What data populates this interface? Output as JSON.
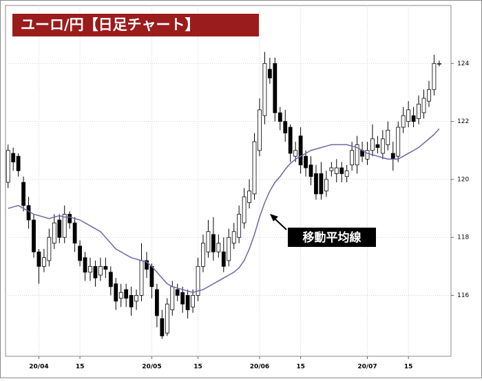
{
  "chart_data": {
    "type": "candlestick",
    "title": "ユーロ/円【日足チャート】",
    "annotation": "移動平均線",
    "xlim": [
      -0.5,
      86.3
    ],
    "xticks": [
      {
        "value": 6,
        "label": "20/04"
      },
      {
        "value": 14,
        "label": "15"
      },
      {
        "value": 28,
        "label": "20/05"
      },
      {
        "value": 37,
        "label": "15"
      },
      {
        "value": 49,
        "label": "20/06"
      },
      {
        "value": 57,
        "label": "15"
      },
      {
        "value": 70,
        "label": "20/07"
      },
      {
        "value": 78,
        "label": "15"
      }
    ],
    "ylim": [
      113.9,
      126
    ],
    "yticks": [
      116,
      118,
      120,
      122,
      124
    ],
    "grid": true,
    "up_color": "#ffffff",
    "down_color": "#000000",
    "open": [
      119.9,
      120.9,
      120.8,
      119.9,
      119.1,
      118.6,
      117.5,
      117.0,
      117.2,
      117.8,
      118.6,
      118.0,
      118.8,
      118.5,
      117.7,
      117.3,
      116.8,
      117.0,
      116.7,
      117.0,
      116.8,
      116.4,
      115.9,
      116.2,
      116.0,
      115.8,
      116.0,
      117.2,
      117.0,
      116.2,
      115.2,
      114.7,
      115.5,
      116.2,
      116.1,
      116.0,
      115.6,
      116.0,
      117.0,
      117.5,
      118.1,
      117.5,
      117.5,
      117.2,
      117.8,
      118.0,
      118.5,
      119.2,
      119.5,
      121.0,
      122.2,
      123.8,
      124.0,
      122.3,
      122.0,
      121.8,
      120.8,
      121.5,
      120.8,
      120.5,
      120.2,
      120.2,
      119.6,
      120.3,
      120.2,
      120.4,
      120.1,
      120.5,
      120.5,
      121.0,
      120.7,
      121.0,
      121.2,
      120.9,
      121.2,
      120.9,
      120.8,
      121.8,
      122.0,
      122.2,
      122.1,
      122.3,
      122.7,
      123.1,
      124.0
    ],
    "high": [
      121.2,
      121.1,
      120.9,
      120.1,
      119.4,
      118.8,
      117.6,
      117.6,
      118.3,
      118.8,
      118.8,
      119.1,
      118.9,
      118.7,
      117.9,
      117.5,
      117.3,
      117.2,
      117.3,
      117.3,
      117.0,
      116.6,
      116.4,
      116.4,
      116.3,
      116.2,
      117.8,
      117.5,
      117.1,
      116.4,
      115.5,
      115.9,
      116.5,
      116.4,
      116.3,
      116.2,
      116.2,
      117.3,
      118.1,
      118.6,
      118.7,
      118.1,
      118.0,
      118.3,
      118.5,
      119.1,
      119.7,
      120.0,
      121.6,
      122.8,
      124.4,
      124.2,
      124.2,
      122.5,
      122.4,
      121.9,
      121.3,
      121.8,
      121.0,
      120.8,
      120.5,
      120.6,
      120.3,
      120.6,
      120.7,
      120.6,
      120.5,
      121.3,
      121.5,
      121.3,
      121.3,
      121.9,
      121.5,
      121.7,
      122.0,
      121.3,
      122.0,
      122.5,
      122.7,
      122.5,
      122.9,
      123.1,
      123.4,
      124.3,
      124.1
    ],
    "low": [
      119.7,
      120.3,
      120.1,
      118.9,
      118.3,
      117.3,
      116.4,
      116.8,
      117.0,
      117.6,
      117.8,
      117.8,
      118.3,
      117.5,
      117.0,
      116.5,
      116.5,
      116.3,
      116.5,
      116.6,
      116.0,
      115.5,
      115.6,
      115.6,
      115.3,
      115.5,
      115.8,
      116.6,
      115.9,
      114.9,
      114.5,
      114.6,
      115.3,
      115.8,
      115.4,
      115.2,
      115.4,
      115.8,
      116.8,
      117.3,
      117.2,
      117.3,
      116.8,
      117.0,
      117.6,
      117.8,
      118.3,
      119.0,
      119.3,
      120.8,
      121.9,
      123.3,
      122.0,
      121.7,
      121.3,
      120.6,
      120.6,
      120.2,
      120.1,
      119.8,
      119.3,
      119.3,
      119.4,
      120.1,
      119.9,
      119.9,
      119.9,
      120.3,
      120.2,
      120.6,
      120.5,
      120.8,
      120.9,
      120.7,
      121.0,
      120.3,
      120.6,
      121.6,
      121.8,
      121.8,
      121.9,
      122.1,
      122.5,
      122.9,
      123.9
    ],
    "close": [
      121.0,
      120.6,
      120.3,
      119.1,
      118.6,
      117.5,
      117.0,
      117.3,
      118.0,
      118.5,
      118.0,
      118.8,
      118.5,
      117.8,
      117.2,
      116.8,
      117.0,
      116.6,
      117.0,
      116.9,
      116.3,
      115.8,
      116.1,
      115.9,
      115.6,
      116.0,
      117.2,
      116.9,
      116.3,
      115.3,
      114.6,
      115.7,
      116.3,
      116.0,
      115.7,
      115.5,
      116.0,
      117.0,
      117.8,
      118.2,
      117.5,
      117.8,
      117.0,
      118.0,
      118.2,
      118.8,
      119.4,
      119.6,
      121.3,
      122.4,
      124.0,
      123.5,
      122.3,
      122.0,
      121.6,
      120.9,
      121.0,
      120.5,
      120.4,
      120.1,
      119.5,
      119.5,
      120.0,
      120.4,
      120.4,
      120.2,
      120.3,
      121.0,
      121.2,
      120.8,
      121.0,
      121.4,
      121.1,
      121.4,
      121.7,
      120.7,
      121.8,
      122.2,
      122.4,
      122.0,
      122.6,
      122.8,
      123.1,
      124.0,
      124.0
    ],
    "moving_average": {
      "color": "#6a64a8",
      "values": [
        119.0,
        119.05,
        119.1,
        119.0,
        118.9,
        118.8,
        118.75,
        118.7,
        118.65,
        118.7,
        118.75,
        118.7,
        118.7,
        118.65,
        118.6,
        118.5,
        118.4,
        118.3,
        118.2,
        118.0,
        117.8,
        117.6,
        117.5,
        117.4,
        117.3,
        117.25,
        117.2,
        117.15,
        117.0,
        116.8,
        116.6,
        116.4,
        116.3,
        116.25,
        116.2,
        116.15,
        116.1,
        116.15,
        116.2,
        116.3,
        116.4,
        116.5,
        116.6,
        116.7,
        116.8,
        116.95,
        117.2,
        117.6,
        118.1,
        118.7,
        119.2,
        119.6,
        119.9,
        120.1,
        120.35,
        120.55,
        120.7,
        120.8,
        120.9,
        121.0,
        121.05,
        121.1,
        121.15,
        121.2,
        121.2,
        121.2,
        121.2,
        121.15,
        121.1,
        121.0,
        120.9,
        120.85,
        120.8,
        120.75,
        120.7,
        120.7,
        120.7,
        120.8,
        120.9,
        121.0,
        121.1,
        121.25,
        121.4,
        121.55,
        121.75
      ]
    }
  }
}
